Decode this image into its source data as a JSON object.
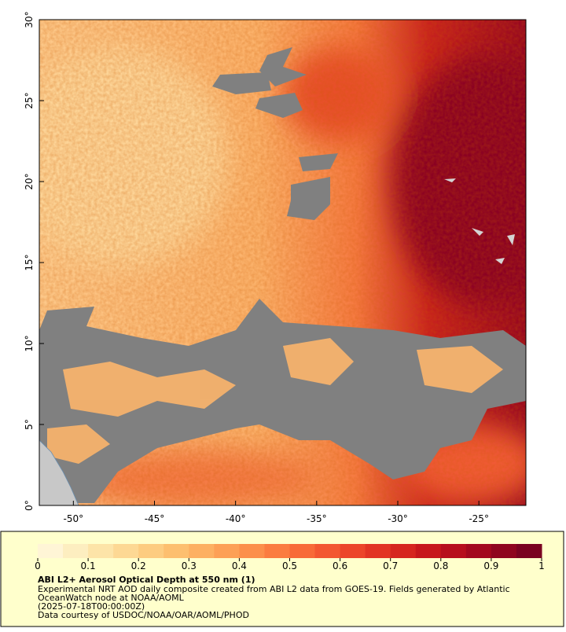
{
  "map": {
    "xlim": [
      -52.1,
      -22.1
    ],
    "ylim": [
      0,
      30
    ],
    "xticks": [
      {
        "value": -50,
        "label": "-50°"
      },
      {
        "value": -45,
        "label": "-45°"
      },
      {
        "value": -40,
        "label": "-40°"
      },
      {
        "value": -35,
        "label": "-35°"
      },
      {
        "value": -30,
        "label": "-30°"
      },
      {
        "value": -25,
        "label": "-25°"
      }
    ],
    "yticks": [
      {
        "value": 0,
        "label": "0°"
      },
      {
        "value": 5,
        "label": "5°"
      },
      {
        "value": 10,
        "label": "10°"
      },
      {
        "value": 15,
        "label": "15°"
      },
      {
        "value": 20,
        "label": "20°"
      },
      {
        "value": 25,
        "label": "25°"
      },
      {
        "value": 30,
        "label": "30°"
      }
    ]
  },
  "colorbar": {
    "range": [
      0,
      1
    ],
    "ticks": [
      0,
      0.1,
      0.2,
      0.3,
      0.4,
      0.5,
      0.6,
      0.7,
      0.8,
      0.9,
      1
    ],
    "colors": [
      "#fff5d6",
      "#fdeec0",
      "#fde4a8",
      "#fdd894",
      "#fdcc80",
      "#fdbf6f",
      "#fdb062",
      "#fda056",
      "#fc8f4b",
      "#fb7c40",
      "#f86a38",
      "#f35731",
      "#ec452a",
      "#e23424",
      "#d6251f",
      "#c7171c",
      "#b70e1d",
      "#a3081e",
      "#8f051f",
      "#7a0221"
    ]
  },
  "caption": {
    "title": "ABI L2+ Aerosol Optical Depth at 550 nm (1)",
    "lines": [
      "Experimental NRT AOD daily composite created from ABI L2 data from GOES-19. Fields generated by Atlantic",
      "OceanWatch node at NOAA/AOML",
      "(2025-07-18T00:00:00Z)",
      "Data courtesy of USDOC/NOAA/OAR/AOML/PHOD"
    ]
  }
}
